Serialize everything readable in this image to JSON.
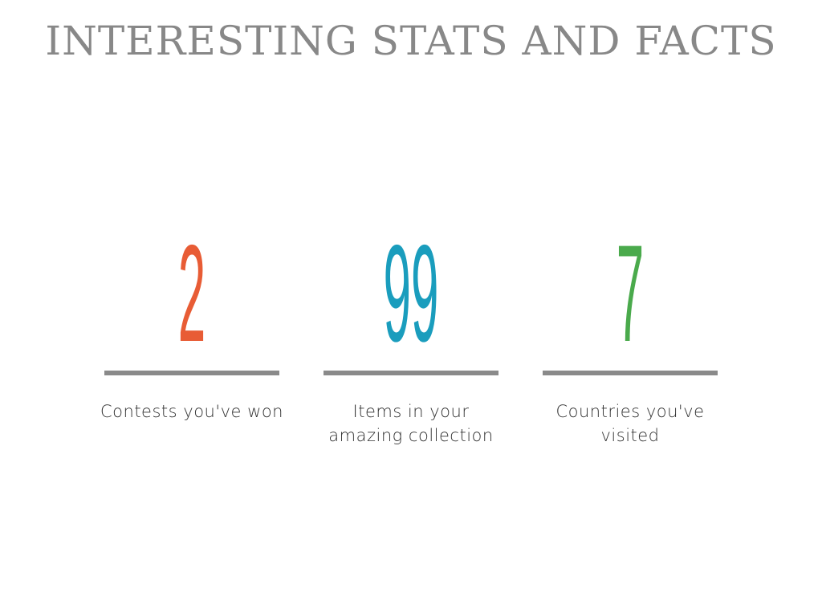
{
  "title": "INTERESTING STATS AND FACTS",
  "stats": [
    {
      "value": "2",
      "label": "Contests you've won",
      "color": "#e85c35"
    },
    {
      "value": "99",
      "label": "Items in your amazing collection",
      "color": "#1a9dbd"
    },
    {
      "value": "7",
      "label": "Countries you've visited",
      "color": "#4aaa4c"
    }
  ]
}
